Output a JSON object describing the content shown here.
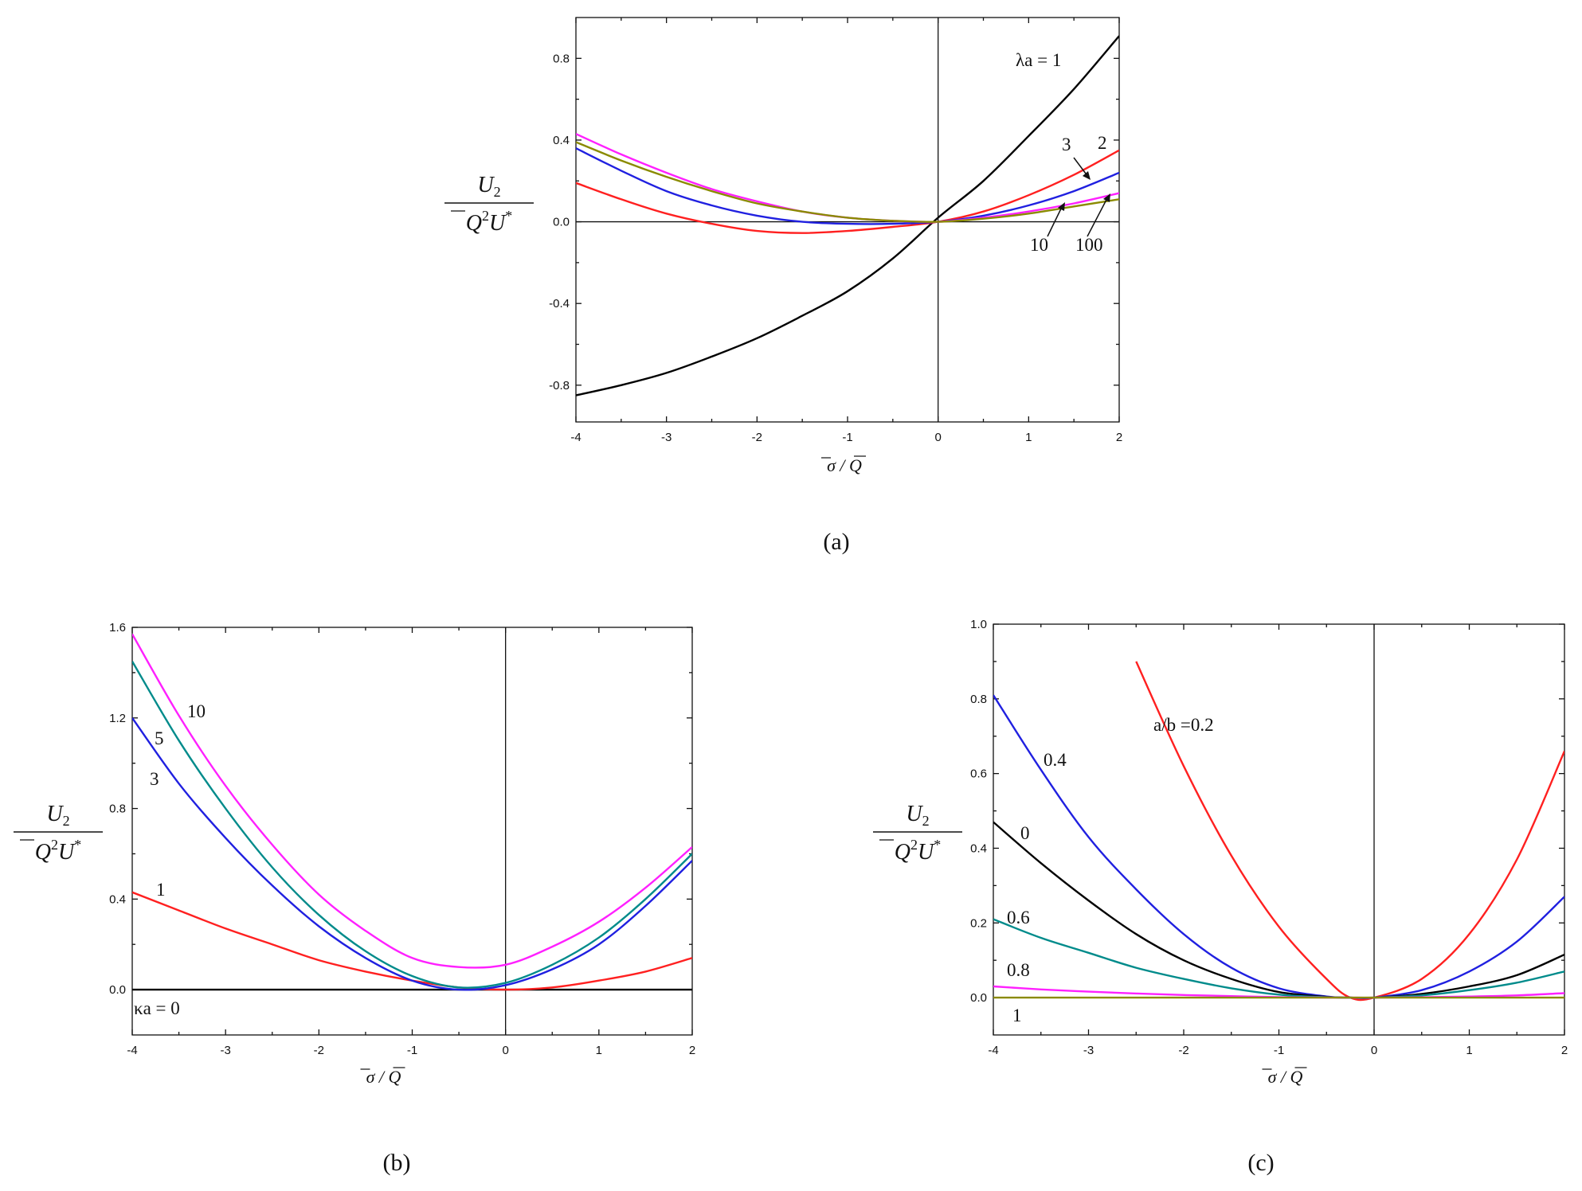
{
  "chart_data": [
    {
      "id": "a",
      "type": "line",
      "panel_label": "(a)",
      "xlabel": "σ̄ / Q̄",
      "ylabel": {
        "numerator": "U₂",
        "denominator": "Q̄²U*"
      },
      "xlim": [
        -4,
        2
      ],
      "ylim": [
        -0.98,
        1.0
      ],
      "xticks": [
        -4,
        -3,
        -2,
        -1,
        0,
        1,
        2
      ],
      "xtick_labels": [
        "-4",
        "-3",
        "-2",
        "-1",
        "0",
        "1",
        "2"
      ],
      "yticks": [
        -0.8,
        -0.4,
        0.0,
        0.4,
        0.8
      ],
      "ytick_labels": [
        "-0.8",
        "-0.4",
        "0.0",
        "0.4",
        "0.8"
      ],
      "x": [
        -4,
        -3.5,
        -3,
        -2.5,
        -2,
        -1.5,
        -1,
        -0.5,
        0,
        0.5,
        1,
        1.5,
        2
      ],
      "series": [
        {
          "name": "λa = 1",
          "color": "#000000",
          "values": [
            -0.85,
            -0.8,
            -0.74,
            -0.66,
            -0.57,
            -0.46,
            -0.34,
            -0.18,
            0.02,
            0.2,
            0.42,
            0.65,
            0.91
          ]
        },
        {
          "name": "2",
          "color": "#ff2020",
          "values": [
            0.19,
            0.11,
            0.04,
            -0.01,
            -0.045,
            -0.055,
            -0.045,
            -0.025,
            0.0,
            0.05,
            0.13,
            0.23,
            0.35
          ]
        },
        {
          "name": "3",
          "color": "#2020e0",
          "values": [
            0.36,
            0.25,
            0.15,
            0.08,
            0.03,
            0.0,
            -0.01,
            -0.01,
            0.0,
            0.03,
            0.08,
            0.15,
            0.24
          ]
        },
        {
          "name": "10",
          "color": "#ff20ff",
          "values": [
            0.43,
            0.33,
            0.24,
            0.16,
            0.1,
            0.05,
            0.02,
            0.005,
            0.0,
            0.02,
            0.05,
            0.09,
            0.14
          ]
        },
        {
          "name": "100",
          "color": "#8a8a00",
          "values": [
            0.39,
            0.3,
            0.22,
            0.15,
            0.09,
            0.05,
            0.02,
            0.005,
            0.0,
            0.015,
            0.04,
            0.075,
            0.11
          ]
        }
      ],
      "annotations": [
        "λa = 1",
        "2",
        "3",
        "10",
        "100"
      ]
    },
    {
      "id": "b",
      "type": "line",
      "panel_label": "(b)",
      "xlabel": "σ̄ / Q̄",
      "ylabel": {
        "numerator": "U₂",
        "denominator": "Q̄²U*"
      },
      "xlim": [
        -4,
        2
      ],
      "ylim": [
        -0.2,
        1.6
      ],
      "xticks": [
        -4,
        -3,
        -2,
        -1,
        0,
        1,
        2
      ],
      "xtick_labels": [
        "-4",
        "-3",
        "-2",
        "-1",
        "0",
        "1",
        "2"
      ],
      "yticks": [
        0.0,
        0.4,
        0.8,
        1.2,
        1.6
      ],
      "ytick_labels": [
        "0.0",
        "0.4",
        "0.8",
        "1.2",
        "1.6"
      ],
      "x": [
        -4,
        -3.5,
        -3,
        -2.5,
        -2,
        -1.5,
        -1,
        -0.5,
        0,
        0.5,
        1,
        1.5,
        2
      ],
      "series": [
        {
          "name": "κa = 0",
          "color": "#000000",
          "values": [
            0,
            0,
            0,
            0,
            0,
            0,
            0,
            0,
            0,
            0,
            0,
            0,
            0
          ]
        },
        {
          "name": "1",
          "color": "#ff2020",
          "values": [
            0.43,
            0.35,
            0.27,
            0.2,
            0.13,
            0.08,
            0.04,
            0.01,
            0.0,
            0.01,
            0.04,
            0.08,
            0.14
          ]
        },
        {
          "name": "3",
          "color": "#2020e0",
          "values": [
            1.2,
            0.91,
            0.67,
            0.46,
            0.28,
            0.14,
            0.04,
            0.0,
            0.02,
            0.09,
            0.2,
            0.37,
            0.57
          ]
        },
        {
          "name": "5",
          "color": "#008b8b",
          "values": [
            1.45,
            1.1,
            0.8,
            0.54,
            0.33,
            0.17,
            0.06,
            0.01,
            0.03,
            0.11,
            0.23,
            0.4,
            0.6
          ]
        },
        {
          "name": "10",
          "color": "#ff20ff",
          "values": [
            1.57,
            1.21,
            0.9,
            0.64,
            0.42,
            0.26,
            0.14,
            0.1,
            0.11,
            0.19,
            0.3,
            0.45,
            0.63
          ]
        }
      ],
      "annotations": [
        "κa = 0",
        "1",
        "3",
        "5",
        "10"
      ]
    },
    {
      "id": "c",
      "type": "line",
      "panel_label": "(c)",
      "xlabel": "σ̄ / Q̄",
      "ylabel": {
        "numerator": "U₂",
        "denominator": "Q̄²U*"
      },
      "xlim": [
        -4,
        2
      ],
      "ylim": [
        -0.1,
        1.0
      ],
      "xticks": [
        -4,
        -3,
        -2,
        -1,
        0,
        1,
        2
      ],
      "xtick_labels": [
        "-4",
        "-3",
        "-2",
        "-1",
        "0",
        "1",
        "2"
      ],
      "yticks": [
        0.0,
        0.2,
        0.4,
        0.6,
        0.8,
        1.0
      ],
      "ytick_labels": [
        "0.0",
        "0.2",
        "0.4",
        "0.6",
        "0.8",
        "1.0"
      ],
      "x": [
        -4,
        -3.5,
        -3,
        -2.5,
        -2,
        -1.5,
        -1,
        -0.5,
        -0.25,
        0,
        0.5,
        1,
        1.5,
        2
      ],
      "series": [
        {
          "name": "a/b = 0.2",
          "color": "#ff2020",
          "values": [
            null,
            null,
            null,
            0.9,
            0.62,
            0.38,
            0.19,
            0.05,
            0.0,
            0.0,
            0.05,
            0.17,
            0.37,
            0.66
          ]
        },
        {
          "name": "0.4",
          "color": "#2020e0",
          "values": [
            0.81,
            0.61,
            0.43,
            0.29,
            0.17,
            0.08,
            0.025,
            0.003,
            0.0,
            0.0,
            0.02,
            0.07,
            0.15,
            0.27
          ]
        },
        {
          "name": "0",
          "color": "#000000",
          "values": [
            0.47,
            0.36,
            0.26,
            0.17,
            0.1,
            0.05,
            0.015,
            0.002,
            0.0,
            0.0,
            0.01,
            0.03,
            0.06,
            0.115
          ]
        },
        {
          "name": "0.6",
          "color": "#008b8b",
          "values": [
            0.21,
            0.16,
            0.12,
            0.08,
            0.05,
            0.025,
            0.008,
            0.001,
            0.0,
            0.0,
            0.006,
            0.02,
            0.04,
            0.07
          ]
        },
        {
          "name": "0.8",
          "color": "#ff20ff",
          "values": [
            0.03,
            0.022,
            0.016,
            0.011,
            0.007,
            0.004,
            0.0015,
            0.0003,
            0.0,
            0.0,
            0.001,
            0.003,
            0.006,
            0.012
          ]
        },
        {
          "name": "1",
          "color": "#8a8a00",
          "values": [
            0,
            0,
            0,
            0,
            0,
            0,
            0,
            0,
            0,
            0,
            0,
            0,
            0,
            0
          ]
        }
      ],
      "annotations": [
        "a/b =0.2",
        "0.4",
        "0",
        "0.6",
        "0.8",
        "1"
      ]
    }
  ]
}
